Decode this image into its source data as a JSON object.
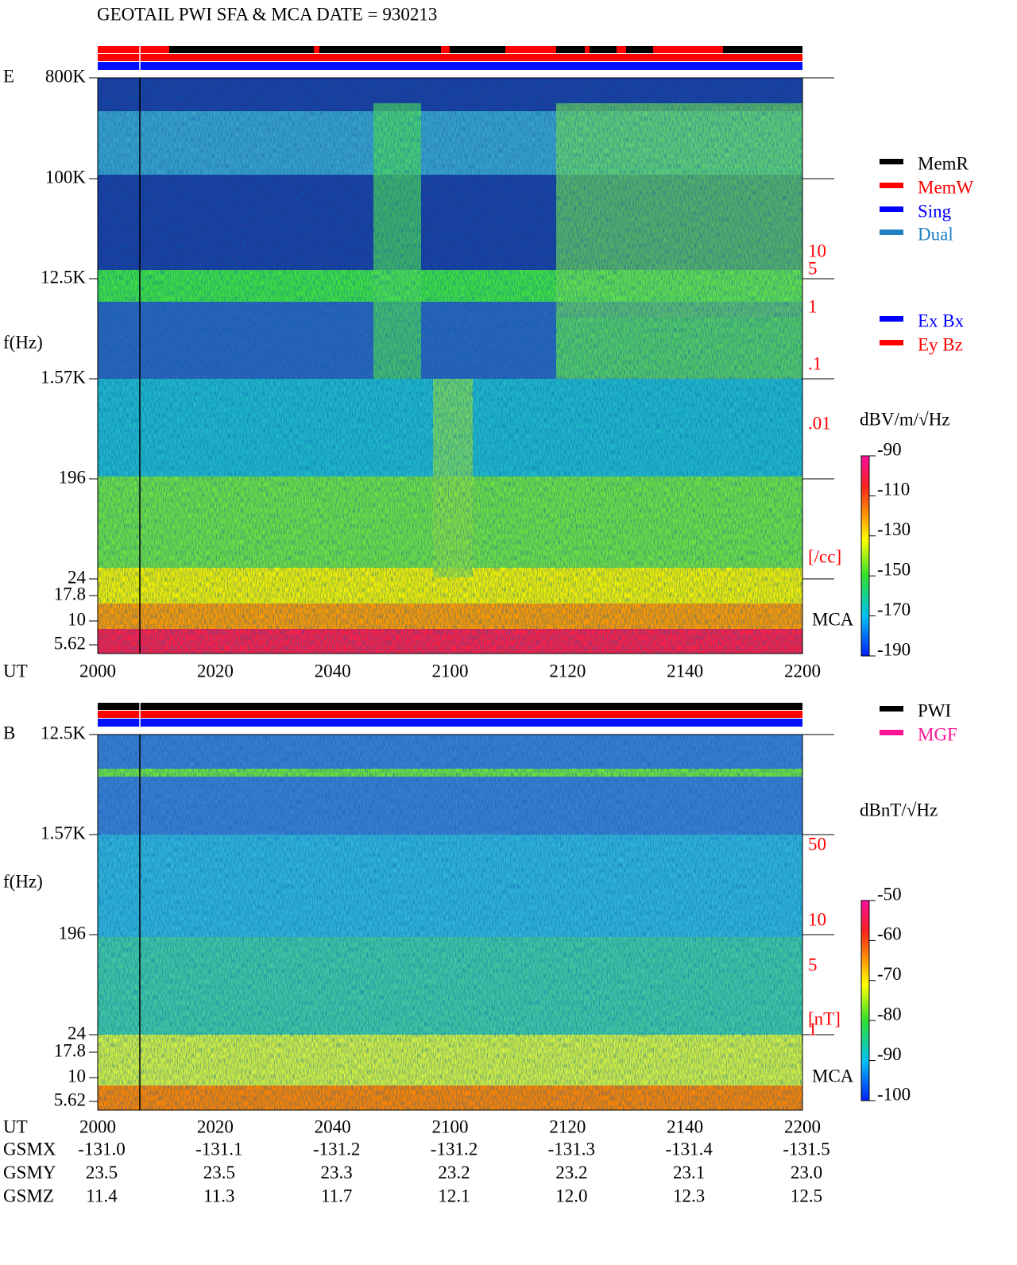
{
  "title": "GEOTAIL  PWI SFA & MCA   DATE = 930213",
  "panels": [
    {
      "label": "E",
      "ylabel": "f(Hz)",
      "xlabel": "UT",
      "yticks": [
        "800K",
        "100K",
        "12.5K",
        "1.57K",
        "196",
        "24",
        "17.8",
        "10",
        "5.62"
      ],
      "xticks": [
        "2000",
        "2020",
        "2040",
        "2100",
        "2120",
        "2140",
        "2200"
      ],
      "mca": "MCA",
      "legend": [
        {
          "name": "MemR",
          "color": "#000000"
        },
        {
          "name": "MemW",
          "color": "#ff0000"
        },
        {
          "name": "Sing",
          "color": "#0000ff"
        },
        {
          "name": "Dual",
          "color": "#2080c0"
        }
      ],
      "legend2": [
        {
          "name": "Ex Bx",
          "color": "#0000ff"
        },
        {
          "name": "Ey Bz",
          "color": "#ff0000"
        }
      ],
      "side_labels": [
        "10",
        "5",
        "1",
        ".1",
        ".01",
        "[/cc]"
      ],
      "colorbar": {
        "unit": "dBV/m/√Hz",
        "lim": [
          -90,
          -190
        ],
        "ticks": [
          -90,
          -110,
          -130,
          -150,
          -170,
          -190
        ]
      }
    },
    {
      "label": "B",
      "ylabel": "f(Hz)",
      "xlabel": "UT",
      "yticks": [
        "12.5K",
        "1.57K",
        "196",
        "24",
        "17.8",
        "10",
        "5.62"
      ],
      "xticks": [
        "2000",
        "2020",
        "2040",
        "2100",
        "2120",
        "2140",
        "2200"
      ],
      "mca": "MCA",
      "legend": [
        {
          "name": "PWI",
          "color": "#000000"
        },
        {
          "name": "MGF",
          "color": "#ff1493"
        }
      ],
      "side_labels": [
        "50",
        "10",
        "5",
        "1",
        "[nT]"
      ],
      "colorbar": {
        "unit": "dBnT/√Hz",
        "lim": [
          -50,
          -100
        ],
        "ticks": [
          -50,
          -60,
          -70,
          -80,
          -90,
          -100
        ]
      }
    }
  ],
  "orbit": {
    "rows": [
      {
        "label": "GSMX",
        "values": [
          "-131.0",
          "-131.1",
          "-131.2",
          "-131.2",
          "-131.3",
          "-131.4",
          "-131.5"
        ]
      },
      {
        "label": "GSMY",
        "values": [
          "23.5",
          "23.5",
          "23.3",
          "23.2",
          "23.2",
          "23.1",
          "23.0"
        ]
      },
      {
        "label": "GSMZ",
        "values": [
          "11.4",
          "11.3",
          "11.7",
          "12.1",
          "12.0",
          "12.3",
          "12.5"
        ]
      }
    ]
  }
}
